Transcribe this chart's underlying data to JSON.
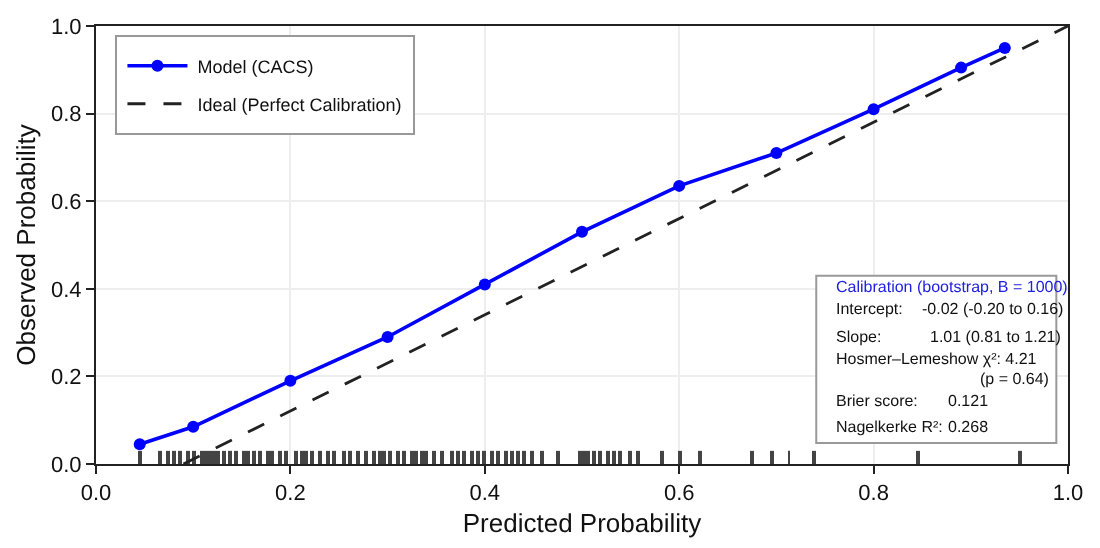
{
  "chart_data": {
    "type": "line",
    "xlabel": "Predicted Probability",
    "ylabel": "Observed Probability",
    "xlim": [
      0,
      1.0
    ],
    "ylim": [
      0,
      1.0
    ],
    "xticks": [
      {
        "value": 0,
        "label": "0.0"
      },
      0.2,
      0.4,
      0.6,
      0.8,
      {
        "value": 1,
        "label": "1.0"
      }
    ],
    "yticks": [
      {
        "value": 0,
        "label": "0.0"
      },
      0.2,
      0.4,
      0.6,
      0.8,
      {
        "value": 1,
        "label": "1.0"
      }
    ],
    "grid": true,
    "legend": "top left",
    "series": [
      {
        "name": "Model (CACS)",
        "color": "#0000ff",
        "marker": "circle",
        "line_style": "solid",
        "x": [
          0.045,
          0.1,
          0.2,
          0.3,
          0.4,
          0.5,
          0.6,
          0.7,
          0.8,
          0.89,
          0.935
        ],
        "values": [
          0.045,
          0.085,
          0.19,
          0.29,
          0.41,
          0.53,
          0.635,
          0.71,
          0.81,
          0.905,
          0.95
        ]
      },
      {
        "name": "Ideal (Perfect Calibration)",
        "color": "#222222",
        "marker": "none",
        "line_style": "dashed",
        "x": [
          0.09,
          1.0
        ],
        "values": [
          0,
          1.0
        ]
      },
      {
        "color": "#444444",
        "type": "bar",
        "x": [
          0.045,
          0.066,
          0.074,
          0.081,
          0.086,
          0.095,
          0.1,
          0.11,
          0.114,
          0.117,
          0.121,
          0.125,
          0.131,
          0.138,
          0.145,
          0.152,
          0.157,
          0.162,
          0.169,
          0.176,
          0.181,
          0.19,
          0.195,
          0.205,
          0.212,
          0.217,
          0.223,
          0.23,
          0.238,
          0.245,
          0.255,
          0.262,
          0.269,
          0.278,
          0.286,
          0.292,
          0.297,
          0.303,
          0.31,
          0.317,
          0.325,
          0.33,
          0.335,
          0.34,
          0.348,
          0.355,
          0.366,
          0.372,
          0.379,
          0.386,
          0.393,
          0.4,
          0.407,
          0.414,
          0.421,
          0.428,
          0.434,
          0.441,
          0.448,
          0.459,
          0.476,
          0.497,
          0.503,
          0.507,
          0.512,
          0.518,
          0.526,
          0.533,
          0.54,
          0.55,
          0.557,
          0.582,
          0.6,
          0.621,
          0.674,
          0.696,
          0.713,
          0.738,
          0.845,
          0.951
        ],
        "values": [
          0.03,
          0.03,
          0.03,
          0.03,
          0.03,
          0.03,
          0.03,
          0.03,
          0.03,
          0.03,
          0.03,
          0.03,
          0.03,
          0.03,
          0.03,
          0.03,
          0.03,
          0.03,
          0.03,
          0.03,
          0.03,
          0.03,
          0.03,
          0.03,
          0.03,
          0.03,
          0.03,
          0.03,
          0.03,
          0.03,
          0.03,
          0.03,
          0.03,
          0.03,
          0.03,
          0.03,
          0.03,
          0.03,
          0.03,
          0.03,
          0.03,
          0.03,
          0.03,
          0.03,
          0.03,
          0.03,
          0.03,
          0.03,
          0.03,
          0.03,
          0.03,
          0.03,
          0.03,
          0.03,
          0.03,
          0.03,
          0.03,
          0.03,
          0.03,
          0.03,
          0.03,
          0.03,
          0.03,
          0.03,
          0.03,
          0.03,
          0.03,
          0.03,
          0.03,
          0.03,
          0.03,
          0.03,
          0.03,
          0.03,
          0.03,
          0.03,
          0.03,
          0.03,
          0.03,
          0.03
        ]
      }
    ],
    "annotations": [
      "Calibration (bootstrap, B = 1000)",
      "Intercept:",
      "-0.02 (-0.20 to 0.16)",
      "Slope:",
      "1.01 (0.81 to 1.21)",
      "Hosmer–Lemeshow χ²: 4.21",
      "(p = 0.64)",
      "Brier score:",
      "0.121",
      "Nagelkerke R²:",
      "0.268"
    ]
  }
}
